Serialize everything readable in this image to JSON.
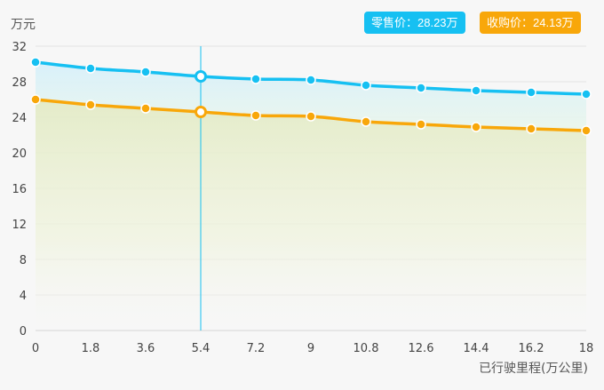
{
  "badges": {
    "retail": "零售价：28.23万",
    "purchase": "收购价：24.13万"
  },
  "colors": {
    "retail": "#16c0f2",
    "purchase": "#f8a70a",
    "grid": "#e3e3e3",
    "cursor": "#16c0f2"
  },
  "chart_data": {
    "type": "line",
    "ylabel": "万元",
    "xlabel": "已行驶里程(万公里)",
    "x": [
      0,
      1.8,
      3.6,
      5.4,
      7.2,
      9,
      10.8,
      12.6,
      14.4,
      16.2,
      18
    ],
    "x_tick_labels": [
      "0",
      "1.8",
      "3.6",
      "5.4",
      "7.2",
      "9",
      "10.8",
      "12.6",
      "14.4",
      "16.2",
      "18"
    ],
    "y_ticks": [
      0,
      4,
      8,
      12,
      16,
      20,
      24,
      28,
      32
    ],
    "xlim": [
      0,
      18
    ],
    "ylim": [
      0,
      32
    ],
    "grid": "horizontal",
    "highlight_x": 5.4,
    "series": [
      {
        "name": "零售价",
        "color": "#16c0f2",
        "values": [
          30.2,
          29.5,
          29.1,
          28.6,
          28.3,
          28.2,
          27.6,
          27.3,
          27.0,
          26.8,
          26.6
        ]
      },
      {
        "name": "收购价",
        "color": "#f8a70a",
        "values": [
          26.0,
          25.4,
          25.0,
          24.6,
          24.2,
          24.1,
          23.5,
          23.2,
          22.9,
          22.7,
          22.5
        ]
      }
    ]
  }
}
